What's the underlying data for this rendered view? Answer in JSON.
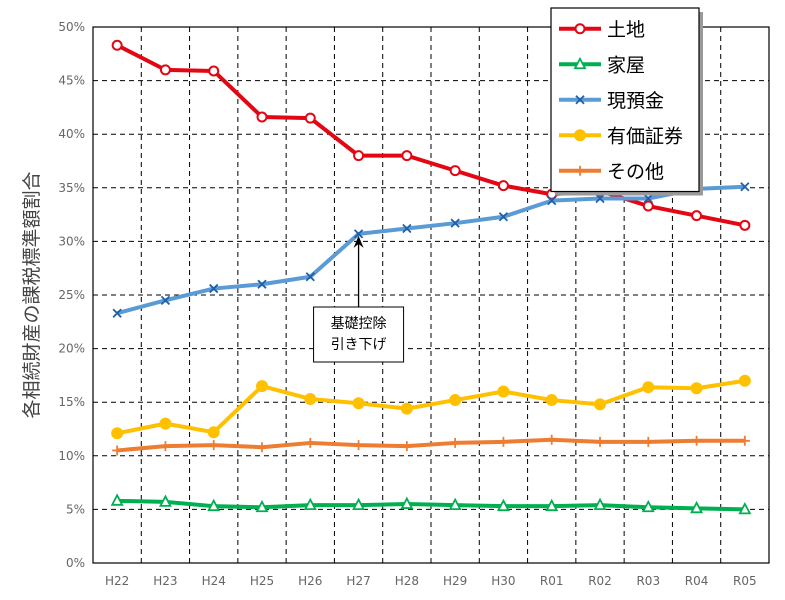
{
  "chart_data": {
    "type": "line",
    "ylabel": "各相続財産の課税標準額割合",
    "categories": [
      "H22",
      "H23",
      "H24",
      "H25",
      "H26",
      "H27",
      "H28",
      "H29",
      "H30",
      "R01",
      "R02",
      "R03",
      "R04",
      "R05"
    ],
    "ylim": [
      0,
      50
    ],
    "yticks": [
      0,
      5,
      10,
      15,
      20,
      25,
      30,
      35,
      40,
      45,
      50
    ],
    "ytick_suffix": "%",
    "grid": true,
    "legend_position": "top-right",
    "series": [
      {
        "name": "土地",
        "color": "#e30613",
        "marker": "circle-open",
        "values": [
          48.3,
          46.0,
          45.9,
          41.6,
          41.5,
          38.0,
          38.0,
          36.6,
          35.2,
          34.4,
          34.7,
          33.3,
          32.4,
          31.5
        ]
      },
      {
        "name": "家屋",
        "color": "#00b050",
        "marker": "triangle-open",
        "values": [
          5.8,
          5.7,
          5.3,
          5.2,
          5.4,
          5.4,
          5.5,
          5.4,
          5.3,
          5.3,
          5.4,
          5.2,
          5.1,
          5.0
        ]
      },
      {
        "name": "現預金",
        "color": "#5b9bd5",
        "marker": "x",
        "values": [
          23.3,
          24.5,
          25.6,
          26.0,
          26.7,
          30.7,
          31.2,
          31.7,
          32.3,
          33.8,
          34.0,
          34.0,
          34.9,
          35.1
        ]
      },
      {
        "name": "有価証券",
        "color": "#ffc000",
        "marker": "circle-filled",
        "values": [
          12.1,
          13.0,
          12.2,
          16.5,
          15.3,
          14.9,
          14.4,
          15.2,
          16.0,
          15.2,
          14.8,
          16.4,
          16.3,
          17.0
        ]
      },
      {
        "name": "その他",
        "color": "#ed7d31",
        "marker": "plus",
        "values": [
          10.5,
          10.9,
          11.0,
          10.8,
          11.2,
          11.0,
          10.9,
          11.2,
          11.3,
          11.5,
          11.3,
          11.3,
          11.4,
          11.4
        ]
      }
    ],
    "annotations": [
      {
        "lines": [
          "基礎控除",
          "引き下げ"
        ],
        "category": "H27",
        "value": 30.7
      }
    ]
  }
}
